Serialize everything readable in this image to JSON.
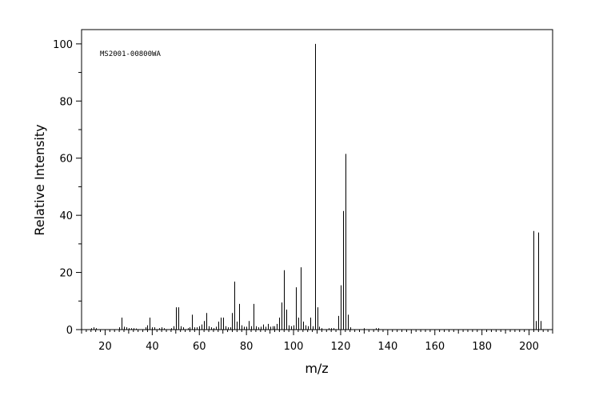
{
  "chart_data": {
    "type": "bar",
    "title": "",
    "annotation": "MS2001-00800WA",
    "xlabel": "m/z",
    "ylabel": "Relative Intensity",
    "xlim": [
      10,
      210
    ],
    "ylim": [
      0,
      105
    ],
    "x_ticks": [
      20,
      40,
      60,
      80,
      100,
      120,
      140,
      160,
      180,
      200
    ],
    "y_ticks": [
      0,
      20,
      40,
      60,
      80,
      100
    ],
    "grid": false,
    "legend": "none",
    "peaks": [
      [
        14,
        0.5
      ],
      [
        15,
        0.8
      ],
      [
        16,
        0.5
      ],
      [
        26,
        0.8
      ],
      [
        27,
        4.2
      ],
      [
        28,
        1.0
      ],
      [
        29,
        0.8
      ],
      [
        30,
        0.5
      ],
      [
        31,
        0.5
      ],
      [
        32,
        0.5
      ],
      [
        33,
        0.4
      ],
      [
        37,
        0.8
      ],
      [
        38,
        1.5
      ],
      [
        39,
        4.2
      ],
      [
        40,
        0.8
      ],
      [
        41,
        0.8
      ],
      [
        43,
        0.5
      ],
      [
        44,
        0.8
      ],
      [
        45,
        0.5
      ],
      [
        48,
        0.5
      ],
      [
        49,
        1.2
      ],
      [
        50,
        7.8
      ],
      [
        51,
        7.8
      ],
      [
        52,
        1.2
      ],
      [
        53,
        0.8
      ],
      [
        55,
        0.5
      ],
      [
        56,
        0.8
      ],
      [
        57,
        5.2
      ],
      [
        58,
        0.8
      ],
      [
        59,
        0.8
      ],
      [
        60,
        1.2
      ],
      [
        61,
        1.8
      ],
      [
        62,
        3.0
      ],
      [
        63,
        5.8
      ],
      [
        64,
        1.2
      ],
      [
        65,
        0.8
      ],
      [
        66,
        0.5
      ],
      [
        67,
        1.0
      ],
      [
        68,
        2.8
      ],
      [
        69,
        4.2
      ],
      [
        70,
        4.2
      ],
      [
        71,
        1.2
      ],
      [
        72,
        0.8
      ],
      [
        73,
        0.8
      ],
      [
        74,
        5.8
      ],
      [
        75,
        16.8
      ],
      [
        76,
        2.8
      ],
      [
        77,
        9.0
      ],
      [
        78,
        1.5
      ],
      [
        79,
        1.0
      ],
      [
        80,
        1.0
      ],
      [
        81,
        3.0
      ],
      [
        82,
        1.2
      ],
      [
        83,
        9.0
      ],
      [
        84,
        1.2
      ],
      [
        85,
        0.8
      ],
      [
        86,
        1.0
      ],
      [
        87,
        1.8
      ],
      [
        88,
        1.0
      ],
      [
        89,
        2.0
      ],
      [
        90,
        1.0
      ],
      [
        91,
        1.2
      ],
      [
        92,
        1.2
      ],
      [
        93,
        2.0
      ],
      [
        94,
        4.2
      ],
      [
        95,
        9.5
      ],
      [
        96,
        20.8
      ],
      [
        97,
        7.0
      ],
      [
        98,
        1.5
      ],
      [
        99,
        1.2
      ],
      [
        100,
        1.5
      ],
      [
        101,
        14.8
      ],
      [
        102,
        4.2
      ],
      [
        103,
        21.8
      ],
      [
        104,
        2.8
      ],
      [
        105,
        1.5
      ],
      [
        106,
        1.2
      ],
      [
        107,
        4.2
      ],
      [
        108,
        1.2
      ],
      [
        109,
        100
      ],
      [
        110,
        7.8
      ],
      [
        111,
        1.0
      ],
      [
        112,
        0.5
      ],
      [
        115,
        0.5
      ],
      [
        116,
        0.5
      ],
      [
        117,
        0.5
      ],
      [
        119,
        4.8
      ],
      [
        120,
        15.5
      ],
      [
        121,
        41.5
      ],
      [
        122,
        61.5
      ],
      [
        123,
        5.2
      ],
      [
        124,
        0.8
      ],
      [
        130,
        0.5
      ],
      [
        135,
        0.5
      ],
      [
        136,
        0.5
      ],
      [
        202,
        34.5
      ],
      [
        203,
        3.0
      ],
      [
        204,
        34.0
      ],
      [
        205,
        3.0
      ]
    ]
  }
}
